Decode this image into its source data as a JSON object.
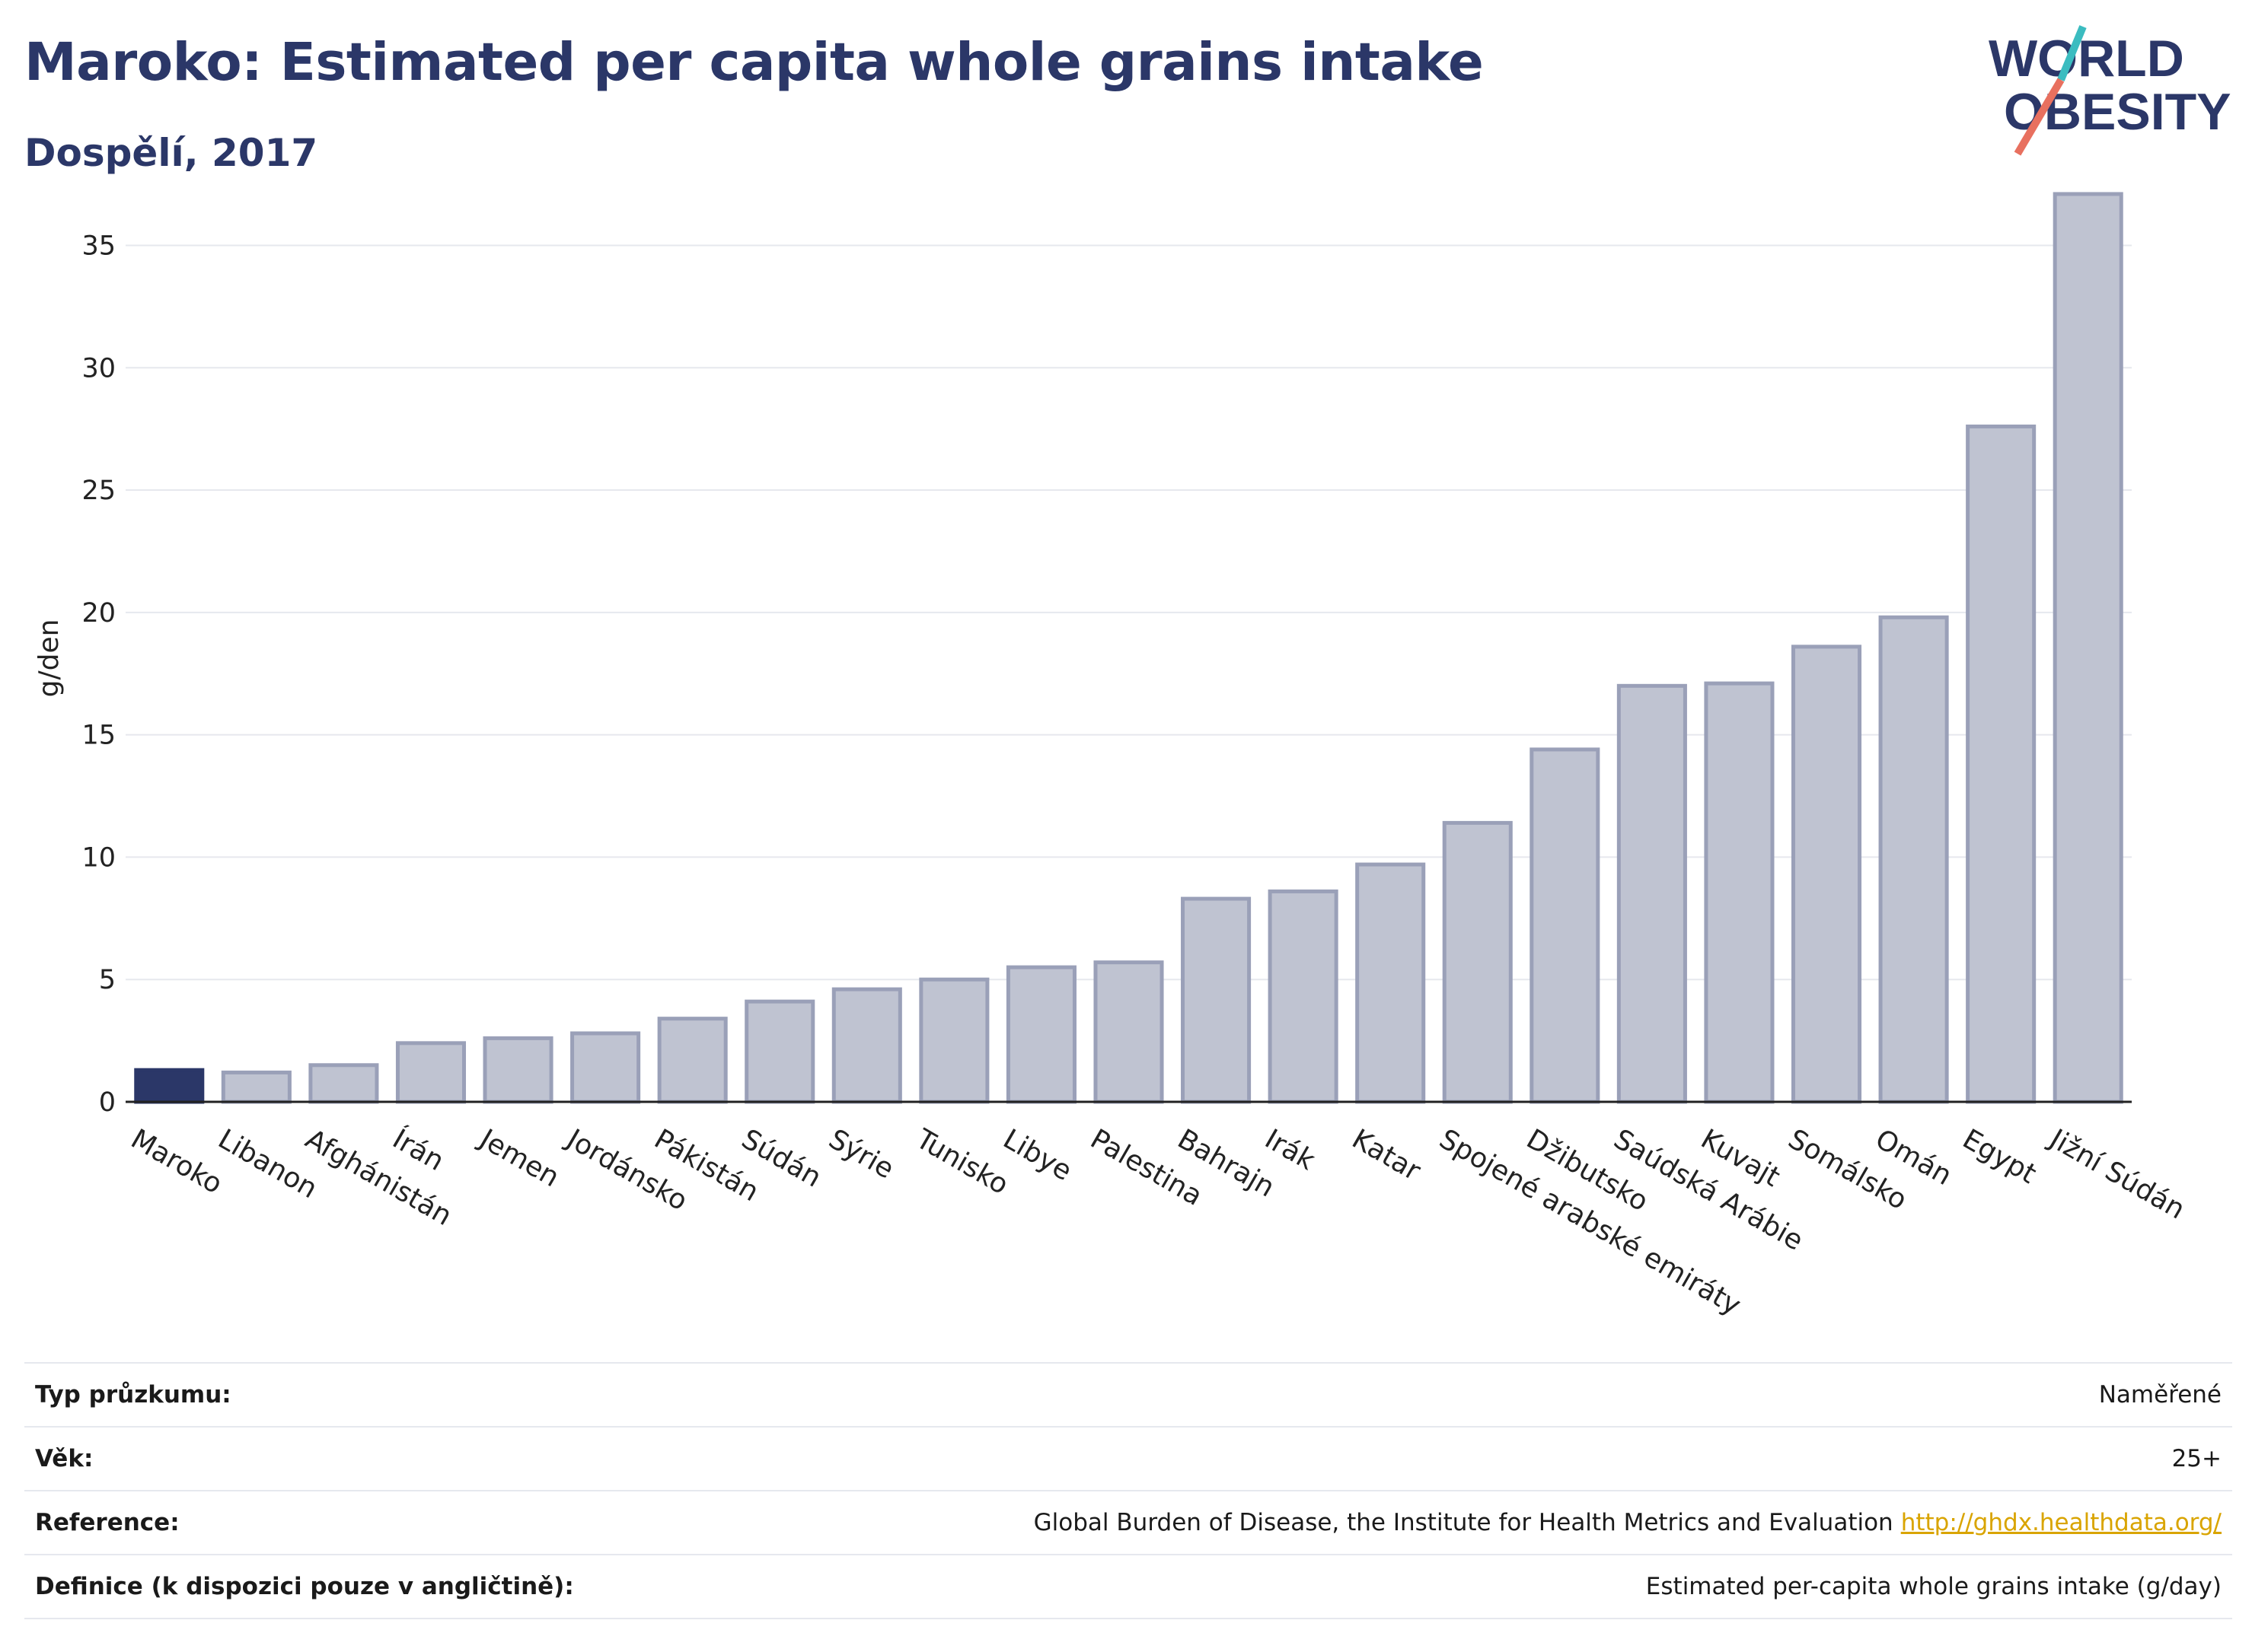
{
  "header": {
    "title": "Maroko: Estimated per capita whole grains intake",
    "subtitle": "Dospělí, 2017"
  },
  "logo": {
    "line1": "WORLD",
    "line2": "OBESITY"
  },
  "colors": {
    "highlight": "#2b3768",
    "bar_fill": "#bfc3d1",
    "bar_stroke": "#9aa0b8",
    "title": "#2b3768",
    "grid": "#e6e8ee",
    "link": "#d9a400"
  },
  "chart_data": {
    "type": "bar",
    "ylabel": "g/den",
    "ylim": [
      0,
      38
    ],
    "yticks": [
      0,
      5,
      10,
      15,
      20,
      25,
      30,
      35
    ],
    "grid": true,
    "highlight": "Maroko",
    "categories": [
      "Maroko",
      "Libanon",
      "Afghánistán",
      "Írán",
      "Jemen",
      "Jordánsko",
      "Pákistán",
      "Súdán",
      "Sýrie",
      "Tunisko",
      "Libye",
      "Palestina",
      "Bahrajn",
      "Irák",
      "Katar",
      "Spojené arabské emiráty",
      "Džibutsko",
      "Saúdská Arábie",
      "Kuvajt",
      "Somálsko",
      "Omán",
      "Egypt",
      "Jižní Súdán"
    ],
    "values": [
      1.3,
      1.2,
      1.5,
      2.4,
      2.6,
      2.8,
      3.4,
      4.1,
      4.6,
      5.0,
      5.5,
      5.7,
      8.3,
      8.6,
      9.7,
      11.4,
      14.4,
      17.0,
      17.1,
      18.6,
      19.8,
      27.6,
      37.1
    ]
  },
  "info": [
    {
      "label": "Typ průzkumu:",
      "value": "Naměřené"
    },
    {
      "label": "Věk:",
      "value": "25+"
    },
    {
      "label": "Reference:",
      "value": "Global Burden of Disease, the Institute for Health Metrics and Evaluation",
      "link": "http://ghdx.healthdata.org/"
    },
    {
      "label": "Definice (k dispozici pouze v angličtině):",
      "value": "Estimated per-capita whole grains intake (g/day)"
    }
  ]
}
